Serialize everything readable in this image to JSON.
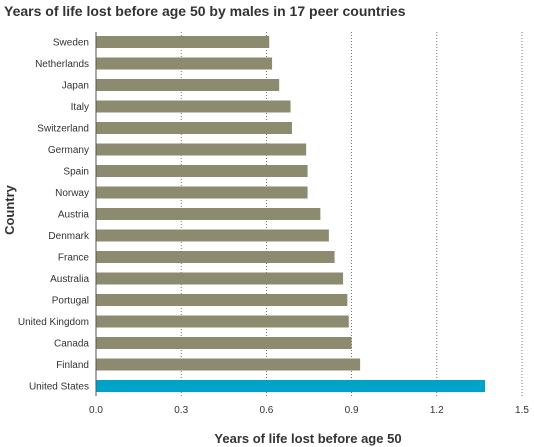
{
  "chart_data": {
    "type": "bar",
    "orientation": "horizontal",
    "title": "Years of life lost before age 50 by males in 17 peer countries",
    "xlabel": "Years of life lost before age 50",
    "ylabel": "Country",
    "xlim": [
      0,
      1.5
    ],
    "xticks": [
      "0.0",
      "0.3",
      "0.6",
      "0.9",
      "1.2",
      "1.5"
    ],
    "grid": "vertical dotted",
    "categories": [
      "Sweden",
      "Netherlands",
      "Japan",
      "Italy",
      "Switzerland",
      "Germany",
      "Spain",
      "Norway",
      "Austria",
      "Denmark",
      "France",
      "Australia",
      "Portugal",
      "United Kingdom",
      "Canada",
      "Finland",
      "United States"
    ],
    "values": [
      0.61,
      0.62,
      0.645,
      0.685,
      0.69,
      0.74,
      0.745,
      0.745,
      0.79,
      0.82,
      0.84,
      0.87,
      0.885,
      0.89,
      0.9,
      0.93,
      1.37
    ],
    "highlight": "United States",
    "colors": {
      "default": "#8c8b70",
      "highlight": "#00a3c8"
    }
  }
}
